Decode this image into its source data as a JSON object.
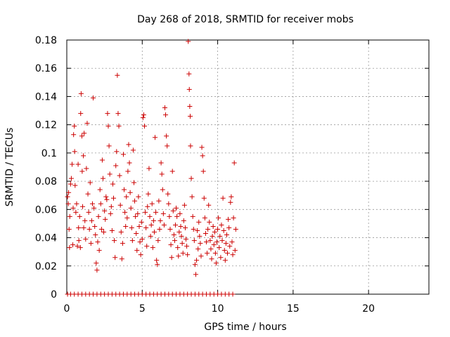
{
  "chart_data": {
    "type": "scatter",
    "title": "Day 268 of 2018, SRMTID for receiver mobs",
    "xlabel": "GPS time / hours",
    "ylabel": "SRMTID / TECUs",
    "xlim": [
      0,
      24
    ],
    "ylim": [
      0,
      0.18
    ],
    "xticks": [
      0,
      5,
      10,
      15,
      20
    ],
    "yticks": [
      0,
      0.02,
      0.04,
      0.06,
      0.08,
      0.1,
      0.12,
      0.14,
      0.16,
      0.18
    ],
    "xtick_labels": [
      "0",
      "5",
      "10",
      "15",
      "20"
    ],
    "ytick_labels": [
      "0",
      "0.02",
      "0.04",
      "0.06",
      "0.08",
      "0.1",
      "0.12",
      "0.14",
      "0.16",
      "0.18"
    ],
    "grid": true,
    "marker": "+",
    "color": "#cc0000",
    "series": [
      {
        "name": "mobs",
        "points": [
          [
            0.05,
            0.069
          ],
          [
            0.1,
            0.064
          ],
          [
            0.12,
            0.072
          ],
          [
            0.15,
            0.046
          ],
          [
            0.18,
            0.033
          ],
          [
            0.2,
            0.055
          ],
          [
            0.25,
            0.078
          ],
          [
            0.3,
            0.082
          ],
          [
            0.35,
            0.092
          ],
          [
            0.4,
            0.035
          ],
          [
            0.42,
            0.061
          ],
          [
            0.45,
            0.113
          ],
          [
            0.5,
            0.119
          ],
          [
            0.52,
            0.101
          ],
          [
            0.55,
            0.077
          ],
          [
            0.6,
            0.058
          ],
          [
            0.65,
            0.064
          ],
          [
            0.7,
            0.034
          ],
          [
            0.75,
            0.092
          ],
          [
            0.78,
            0.047
          ],
          [
            0.8,
            0.038
          ],
          [
            0.85,
            0.055
          ],
          [
            0.9,
            0.033
          ],
          [
            0.92,
            0.128
          ],
          [
            0.95,
            0.142
          ],
          [
            1.0,
            0.112
          ],
          [
            1.02,
            0.087
          ],
          [
            1.05,
            0.062
          ],
          [
            1.1,
            0.098
          ],
          [
            1.12,
            0.047
          ],
          [
            1.15,
            0.114
          ],
          [
            1.2,
            0.052
          ],
          [
            1.25,
            0.039
          ],
          [
            1.3,
            0.089
          ],
          [
            1.35,
            0.121
          ],
          [
            1.4,
            0.071
          ],
          [
            1.45,
            0.058
          ],
          [
            1.5,
            0.046
          ],
          [
            1.55,
            0.079
          ],
          [
            1.6,
            0.036
          ],
          [
            1.65,
            0.052
          ],
          [
            1.7,
            0.064
          ],
          [
            1.75,
            0.139
          ],
          [
            1.8,
            0.061
          ],
          [
            1.85,
            0.048
          ],
          [
            1.9,
            0.042
          ],
          [
            1.95,
            0.022
          ],
          [
            2.0,
            0.017
          ],
          [
            2.05,
            0.037
          ],
          [
            2.1,
            0.055
          ],
          [
            2.15,
            0.031
          ],
          [
            2.2,
            0.074
          ],
          [
            2.25,
            0.064
          ],
          [
            2.3,
            0.046
          ],
          [
            2.35,
            0.095
          ],
          [
            2.4,
            0.082
          ],
          [
            2.45,
            0.044
          ],
          [
            2.5,
            0.059
          ],
          [
            2.55,
            0.053
          ],
          [
            2.6,
            0.069
          ],
          [
            2.65,
            0.067
          ],
          [
            2.7,
            0.128
          ],
          [
            2.75,
            0.119
          ],
          [
            2.8,
            0.105
          ],
          [
            2.85,
            0.085
          ],
          [
            2.9,
            0.057
          ],
          [
            2.95,
            0.062
          ],
          [
            3.0,
            0.045
          ],
          [
            3.05,
            0.078
          ],
          [
            3.1,
            0.068
          ],
          [
            3.15,
            0.038
          ],
          [
            3.2,
            0.026
          ],
          [
            3.25,
            0.091
          ],
          [
            3.3,
            0.101
          ],
          [
            3.35,
            0.155
          ],
          [
            3.4,
            0.128
          ],
          [
            3.45,
            0.119
          ],
          [
            3.5,
            0.084
          ],
          [
            3.55,
            0.063
          ],
          [
            3.6,
            0.044
          ],
          [
            3.65,
            0.025
          ],
          [
            3.7,
            0.036
          ],
          [
            3.75,
            0.099
          ],
          [
            3.8,
            0.074
          ],
          [
            3.85,
            0.058
          ],
          [
            3.9,
            0.048
          ],
          [
            3.95,
            0.069
          ],
          [
            4.0,
            0.054
          ],
          [
            4.05,
            0.087
          ],
          [
            4.1,
            0.106
          ],
          [
            4.15,
            0.093
          ],
          [
            4.2,
            0.072
          ],
          [
            4.25,
            0.061
          ],
          [
            4.3,
            0.047
          ],
          [
            4.35,
            0.038
          ],
          [
            4.4,
            0.102
          ],
          [
            4.45,
            0.079
          ],
          [
            4.5,
            0.066
          ],
          [
            4.55,
            0.055
          ],
          [
            4.6,
            0.043
          ],
          [
            4.65,
            0.031
          ],
          [
            4.7,
            0.057
          ],
          [
            4.75,
            0.069
          ],
          [
            4.8,
            0.048
          ],
          [
            4.85,
            0.037
          ],
          [
            4.9,
            0.028
          ],
          [
            4.95,
            0.051
          ],
          [
            5.0,
            0.039
          ],
          [
            5.05,
            0.125
          ],
          [
            5.1,
            0.127
          ],
          [
            5.15,
            0.119
          ],
          [
            5.2,
            0.058
          ],
          [
            5.25,
            0.047
          ],
          [
            5.3,
            0.034
          ],
          [
            5.35,
            0.062
          ],
          [
            5.4,
            0.071
          ],
          [
            5.45,
            0.089
          ],
          [
            5.5,
            0.055
          ],
          [
            5.55,
            0.041
          ],
          [
            5.6,
            0.049
          ],
          [
            5.65,
            0.064
          ],
          [
            5.7,
            0.033
          ],
          [
            5.75,
            0.052
          ],
          [
            5.8,
            0.044
          ],
          [
            5.85,
            0.111
          ],
          [
            5.9,
            0.058
          ],
          [
            5.95,
            0.024
          ],
          [
            6.0,
            0.021
          ],
          [
            6.05,
            0.038
          ],
          [
            6.1,
            0.066
          ],
          [
            6.15,
            0.046
          ],
          [
            6.2,
            0.052
          ],
          [
            6.25,
            0.093
          ],
          [
            6.3,
            0.085
          ],
          [
            6.35,
            0.074
          ],
          [
            6.4,
            0.057
          ],
          [
            6.45,
            0.049
          ],
          [
            6.5,
            0.132
          ],
          [
            6.55,
            0.127
          ],
          [
            6.6,
            0.112
          ],
          [
            6.65,
            0.105
          ],
          [
            6.7,
            0.071
          ],
          [
            6.75,
            0.064
          ],
          [
            6.8,
            0.055
          ],
          [
            6.85,
            0.046
          ],
          [
            6.9,
            0.035
          ],
          [
            6.95,
            0.026
          ],
          [
            7.0,
            0.087
          ],
          [
            7.05,
            0.059
          ],
          [
            7.1,
            0.042
          ],
          [
            7.15,
            0.038
          ],
          [
            7.2,
            0.049
          ],
          [
            7.25,
            0.061
          ],
          [
            7.3,
            0.055
          ],
          [
            7.35,
            0.033
          ],
          [
            7.4,
            0.027
          ],
          [
            7.45,
            0.044
          ],
          [
            7.5,
            0.057
          ],
          [
            7.55,
            0.048
          ],
          [
            7.6,
            0.041
          ],
          [
            7.65,
            0.036
          ],
          [
            7.7,
            0.029
          ],
          [
            7.75,
            0.052
          ],
          [
            7.8,
            0.063
          ],
          [
            7.85,
            0.047
          ],
          [
            7.9,
            0.039
          ],
          [
            7.95,
            0.034
          ],
          [
            8.0,
            0.028
          ],
          [
            8.05,
            0.179
          ],
          [
            8.1,
            0.156
          ],
          [
            8.12,
            0.145
          ],
          [
            8.15,
            0.133
          ],
          [
            8.18,
            0.126
          ],
          [
            8.2,
            0.105
          ],
          [
            8.25,
            0.082
          ],
          [
            8.3,
            0.069
          ],
          [
            8.35,
            0.055
          ],
          [
            8.4,
            0.046
          ],
          [
            8.45,
            0.038
          ],
          [
            8.5,
            0.021
          ],
          [
            8.55,
            0.014
          ],
          [
            8.6,
            0.024
          ],
          [
            8.65,
            0.045
          ],
          [
            8.7,
            0.032
          ],
          [
            8.75,
            0.051
          ],
          [
            8.8,
            0.041
          ],
          [
            8.85,
            0.036
          ],
          [
            8.9,
            0.027
          ],
          [
            8.95,
            0.104
          ],
          [
            9.0,
            0.098
          ],
          [
            9.05,
            0.087
          ],
          [
            9.1,
            0.068
          ],
          [
            9.15,
            0.054
          ],
          [
            9.2,
            0.043
          ],
          [
            9.25,
            0.037
          ],
          [
            9.3,
            0.029
          ],
          [
            9.35,
            0.046
          ],
          [
            9.4,
            0.063
          ],
          [
            9.45,
            0.051
          ],
          [
            9.5,
            0.038
          ],
          [
            9.55,
            0.032
          ],
          [
            9.6,
            0.025
          ],
          [
            9.65,
            0.041
          ],
          [
            9.7,
            0.048
          ],
          [
            9.75,
            0.035
          ],
          [
            9.8,
            0.044
          ],
          [
            9.85,
            0.029
          ],
          [
            9.9,
            0.022
          ],
          [
            9.95,
            0.037
          ],
          [
            10.0,
            0.046
          ],
          [
            10.05,
            0.054
          ],
          [
            10.1,
            0.033
          ],
          [
            10.15,
            0.041
          ],
          [
            10.2,
            0.026
          ],
          [
            10.25,
            0.049
          ],
          [
            10.3,
            0.038
          ],
          [
            10.35,
            0.068
          ],
          [
            10.4,
            0.045
          ],
          [
            10.45,
            0.031
          ],
          [
            10.5,
            0.024
          ],
          [
            10.55,
            0.036
          ],
          [
            10.6,
            0.042
          ],
          [
            10.65,
            0.029
          ],
          [
            10.7,
            0.053
          ],
          [
            10.75,
            0.047
          ],
          [
            10.8,
            0.034
          ],
          [
            10.85,
            0.065
          ],
          [
            10.9,
            0.069
          ],
          [
            10.95,
            0.037
          ],
          [
            11.0,
            0.028
          ],
          [
            11.05,
            0.054
          ],
          [
            11.1,
            0.093
          ],
          [
            11.15,
            0.031
          ],
          [
            11.2,
            0.046
          ],
          [
            0.05,
            0
          ],
          [
            0.25,
            0
          ],
          [
            0.5,
            0
          ],
          [
            0.75,
            0
          ],
          [
            1.0,
            0
          ],
          [
            1.25,
            0
          ],
          [
            1.5,
            0
          ],
          [
            1.75,
            0
          ],
          [
            2.0,
            0
          ],
          [
            2.25,
            0
          ],
          [
            2.5,
            0
          ],
          [
            2.75,
            0
          ],
          [
            3.0,
            0
          ],
          [
            3.25,
            0
          ],
          [
            3.5,
            0
          ],
          [
            3.75,
            0
          ],
          [
            4.0,
            0
          ],
          [
            4.25,
            0
          ],
          [
            4.5,
            0
          ],
          [
            4.75,
            0
          ],
          [
            5.0,
            0
          ],
          [
            5.25,
            0
          ],
          [
            5.5,
            0
          ],
          [
            5.75,
            0
          ],
          [
            6.0,
            0
          ],
          [
            6.25,
            0
          ],
          [
            6.5,
            0
          ],
          [
            6.75,
            0
          ],
          [
            7.0,
            0
          ],
          [
            7.25,
            0
          ],
          [
            7.5,
            0
          ],
          [
            7.75,
            0
          ],
          [
            8.0,
            0
          ],
          [
            8.25,
            0
          ],
          [
            8.5,
            0
          ],
          [
            8.75,
            0
          ],
          [
            9.0,
            0
          ],
          [
            9.25,
            0
          ],
          [
            9.5,
            0
          ],
          [
            9.75,
            0
          ],
          [
            10.0,
            0
          ],
          [
            10.25,
            0
          ],
          [
            10.5,
            0
          ],
          [
            10.75,
            0
          ],
          [
            11.0,
            0
          ]
        ]
      }
    ]
  }
}
